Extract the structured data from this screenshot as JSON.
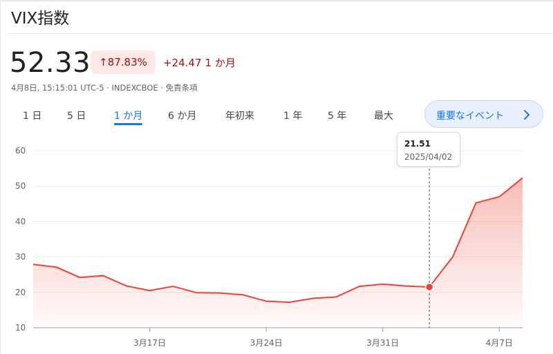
{
  "header": {
    "title": "VIX指数",
    "price": "52.33",
    "percent_change": "87.83%",
    "change": "+24.47",
    "change_period": "1 か月",
    "meta": "4月8日, 15:15:01 UTC-5 · INDEXCBOE · 免責条項",
    "up_color": "#a50e0e"
  },
  "tabs": [
    {
      "label": "1 日"
    },
    {
      "label": "5 日"
    },
    {
      "label": "1 か月",
      "active": true
    },
    {
      "label": "6 か月"
    },
    {
      "label": "年初来"
    },
    {
      "label": "1 年"
    },
    {
      "label": "5 年"
    },
    {
      "label": "最大"
    }
  ],
  "events_button": {
    "label": "重要なイベント",
    "icon": "chevron-right-icon"
  },
  "tooltip": {
    "value": "21.51",
    "date": "2025/04/02"
  },
  "chart_data": {
    "type": "area",
    "line_color": "#ea4335",
    "grid": true,
    "ylim": [
      10,
      60
    ],
    "y_ticks": [
      10,
      20,
      30,
      40,
      50,
      60
    ],
    "x_tick_labels": [
      {
        "label": "3月17日",
        "date": "2025-03-17"
      },
      {
        "label": "3月24日",
        "date": "2025-03-24"
      },
      {
        "label": "3月31日",
        "date": "2025-03-31"
      },
      {
        "label": "4月7日",
        "date": "2025-04-07"
      }
    ],
    "series": [
      {
        "points": [
          {
            "date": "2025-03-10",
            "value": 27.9
          },
          {
            "date": "2025-03-11",
            "value": 27.1
          },
          {
            "date": "2025-03-12",
            "value": 24.2
          },
          {
            "date": "2025-03-13",
            "value": 24.7
          },
          {
            "date": "2025-03-14",
            "value": 21.8
          },
          {
            "date": "2025-03-17",
            "value": 20.5
          },
          {
            "date": "2025-03-18",
            "value": 21.7
          },
          {
            "date": "2025-03-19",
            "value": 19.9
          },
          {
            "date": "2025-03-20",
            "value": 19.8
          },
          {
            "date": "2025-03-21",
            "value": 19.3
          },
          {
            "date": "2025-03-24",
            "value": 17.5
          },
          {
            "date": "2025-03-25",
            "value": 17.2
          },
          {
            "date": "2025-03-26",
            "value": 18.3
          },
          {
            "date": "2025-03-27",
            "value": 18.7
          },
          {
            "date": "2025-03-28",
            "value": 21.7
          },
          {
            "date": "2025-03-31",
            "value": 22.3
          },
          {
            "date": "2025-04-01",
            "value": 21.8
          },
          {
            "date": "2025-04-02",
            "value": 21.51
          },
          {
            "date": "2025-04-03",
            "value": 30.0
          },
          {
            "date": "2025-04-04",
            "value": 45.3
          },
          {
            "date": "2025-04-07",
            "value": 47.0
          },
          {
            "date": "2025-04-08",
            "value": 52.33
          }
        ]
      }
    ],
    "highlight_date": "2025-04-02"
  }
}
